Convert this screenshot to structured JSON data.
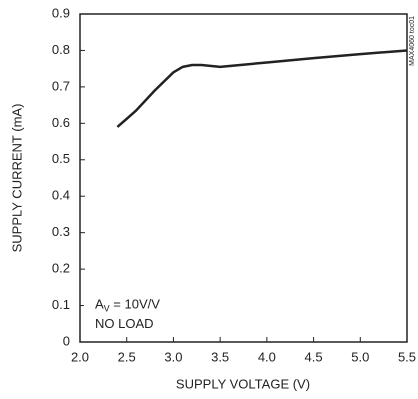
{
  "chart_data": {
    "type": "line",
    "xlabel": "SUPPLY VOLTAGE (V)",
    "ylabel": "SUPPLY CURRENT (mA)",
    "note": "MAX4060 toc01",
    "annotation": {
      "text": "A",
      "subscript": "V",
      "tail": " = 10V/V",
      "line2": "NO LOAD"
    },
    "x": [
      2.4,
      2.6,
      2.8,
      3.0,
      3.1,
      3.2,
      3.3,
      3.5,
      4.0,
      4.5,
      5.0,
      5.5
    ],
    "series": [
      {
        "color": "#222222",
        "values": [
          0.59,
          0.635,
          0.69,
          0.74,
          0.755,
          0.76,
          0.76,
          0.755,
          0.767,
          0.779,
          0.79,
          0.8
        ]
      }
    ],
    "xlim": [
      2.0,
      5.5
    ],
    "xticks": [
      {
        "value": 2,
        "label": "2.0"
      },
      2.5,
      {
        "value": 3,
        "label": "3.0"
      },
      3.5,
      {
        "value": 4,
        "label": "4.0"
      },
      4.5,
      {
        "value": 5,
        "label": "5.0"
      },
      5.5
    ],
    "ylim": [
      0,
      0.9
    ],
    "yticks": [
      0,
      0.1,
      0.2,
      0.3,
      0.4,
      0.5,
      0.6,
      0.7,
      0.8,
      0.9
    ],
    "grid": false
  }
}
